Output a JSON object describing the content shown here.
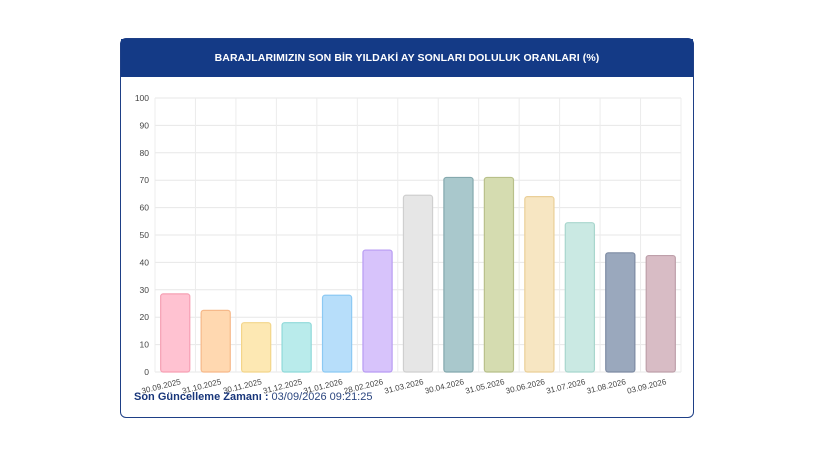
{
  "header": {
    "title": "BARAJLARIMIZIN SON BİR YILDAKİ AY SONLARI DOLULUK ORANLARI (%)"
  },
  "footer": {
    "label": "Son Güncelleme Zamanı :",
    "value": "03/09/2026 09:21:25"
  },
  "colors": {
    "header_bg": "#143a86",
    "bar_fills": [
      "#ffc2d1",
      "#ffd8b0",
      "#fde8b3",
      "#b9ebeb",
      "#b7defa",
      "#d7c3fb",
      "#e6e6e6",
      "#a9c8cc",
      "#d5dcb0",
      "#f7e6c2",
      "#cae9e3",
      "#9aa8bd",
      "#d8bcc5"
    ],
    "bar_strokes": [
      "#f6a0b4",
      "#f6b98a",
      "#f3d58a",
      "#8fd9d9",
      "#8cc9f3",
      "#b89cf3",
      "#cfcfcf",
      "#85a9ae",
      "#b8c08a",
      "#eacf98",
      "#a8d6cd",
      "#7d8ba3",
      "#bea0aa"
    ]
  },
  "chart_data": {
    "type": "bar",
    "title": "BARAJLARIMIZIN SON BİR YILDAKİ AY SONLARI DOLULUK ORANLARI (%)",
    "categories": [
      "30.09.2025",
      "31.10.2025",
      "30.11.2025",
      "31.12.2025",
      "31.01.2026",
      "28.02.2026",
      "31.03.2026",
      "30.04.2026",
      "31.05.2026",
      "30.06.2026",
      "31.07.2026",
      "31.08.2026",
      "03.09.2026"
    ],
    "values": [
      28.5,
      22.5,
      18,
      18,
      28,
      44.5,
      64.5,
      71,
      71,
      64,
      54.5,
      43.5,
      42.5
    ],
    "ylim": [
      0,
      100
    ],
    "yticks": [
      "0",
      "10",
      "20",
      "30",
      "40",
      "50",
      "60",
      "70",
      "80",
      "90",
      "100"
    ],
    "grid": true,
    "legend": "none"
  }
}
